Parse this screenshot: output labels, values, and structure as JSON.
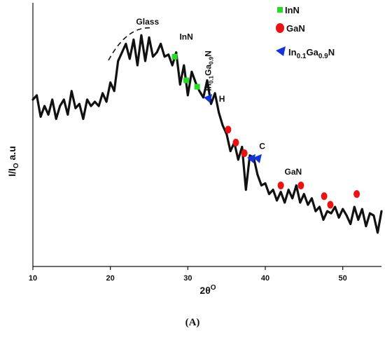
{
  "chart_data": {
    "type": "line",
    "xlabel": "2θ",
    "xlabel_sup": "O",
    "ylabel": "I/I",
    "ylabel_sub": "O",
    "ylabel_unit": " a.u",
    "xlim": [
      10,
      55
    ],
    "ylim": [
      0,
      100
    ],
    "xticks": [
      10,
      20,
      30,
      40,
      50
    ],
    "grid": false,
    "legend_position": "top-right",
    "series": [
      {
        "x": [
          10,
          10.5,
          11,
          11.5,
          12,
          12.5,
          13,
          13.5,
          14,
          14.5,
          15,
          15.5,
          16,
          16.5,
          17,
          17.5,
          18,
          18.5,
          19,
          19.5,
          20,
          20.5,
          21,
          21.5,
          22,
          22.5,
          23,
          23.5,
          24,
          24.5,
          25,
          25.5,
          26,
          26.5,
          27,
          27.5,
          28,
          28.5,
          29,
          29.5,
          30,
          30.5,
          31,
          31.5,
          32,
          32.5,
          33,
          33.5,
          34,
          34.5,
          35,
          35.5,
          36,
          36.5,
          37,
          37.5,
          38,
          38.5,
          39,
          39.5,
          40,
          40.5,
          41,
          41.5,
          42,
          42.5,
          43,
          43.5,
          44,
          44.5,
          45,
          45.5,
          46,
          46.5,
          47,
          47.5,
          48,
          48.5,
          49,
          49.5,
          50,
          50.5,
          51,
          51.5,
          52,
          52.5,
          53,
          53.5,
          54,
          54.5,
          55
        ],
        "y": [
          66,
          68,
          58,
          63,
          59,
          66,
          57,
          63,
          66,
          59,
          70,
          62,
          64,
          57,
          66,
          63,
          65,
          63,
          69,
          65,
          74,
          70,
          84,
          88,
          92,
          85,
          94,
          82,
          96,
          84,
          95,
          86,
          88,
          92,
          86,
          87,
          82,
          88,
          73,
          82,
          68,
          79,
          74,
          70,
          67,
          75,
          64,
          69,
          60,
          54,
          50,
          42,
          46,
          38,
          44,
          24,
          40,
          39,
          31,
          26,
          27,
          22,
          24,
          19,
          23,
          18,
          24,
          20,
          26,
          18,
          22,
          17,
          20,
          14,
          16,
          10,
          14,
          13,
          16,
          11,
          15,
          12,
          8,
          16,
          10,
          15,
          7,
          13,
          12,
          4,
          14
        ]
      }
    ],
    "markers": [
      {
        "name": "InN",
        "color": "#22dd22",
        "shape": "square",
        "points": [
          [
            28.3,
            86
          ],
          [
            29.8,
            75
          ],
          [
            31.2,
            72
          ]
        ]
      },
      {
        "name": "GaN",
        "color": "#ee1111",
        "shape": "circle",
        "points": [
          [
            35.2,
            52
          ],
          [
            36.2,
            46
          ],
          [
            37.3,
            41
          ],
          [
            42.0,
            26
          ],
          [
            44.6,
            26
          ],
          [
            47.6,
            21
          ],
          [
            48.4,
            17
          ],
          [
            51.8,
            22
          ]
        ]
      },
      {
        "name": "In0.1Ga0.9N",
        "color": "#1133dd",
        "shape": "triangle",
        "points": [
          [
            32.6,
            66
          ],
          [
            38.2,
            38
          ],
          [
            39.0,
            38
          ]
        ]
      }
    ],
    "annotations": [
      {
        "text": "Glass",
        "x": 24.8,
        "y": 101
      },
      {
        "text": "InN",
        "x": 29.8,
        "y": 94
      },
      {
        "text": "H",
        "x": 34.4,
        "y": 65
      },
      {
        "text": "C",
        "x": 39.6,
        "y": 43
      },
      {
        "text": "GaN",
        "x": 43.6,
        "y": 31
      }
    ],
    "vertical_label": {
      "base": "In",
      "sub1": "0.1",
      "mid": "Ga",
      "sub2": "0.9",
      "end": "N",
      "x": 33.0,
      "y": 70
    },
    "legend": [
      {
        "label": "InN",
        "marker": "square",
        "color": "#22dd22"
      },
      {
        "label": "GaN",
        "marker": "circle",
        "color": "#ee1111"
      },
      {
        "label_parts": [
          "In",
          "0.1",
          "Ga",
          "0.9",
          "N"
        ],
        "marker": "triangle",
        "color": "#1133dd"
      }
    ]
  },
  "caption": "(A)"
}
